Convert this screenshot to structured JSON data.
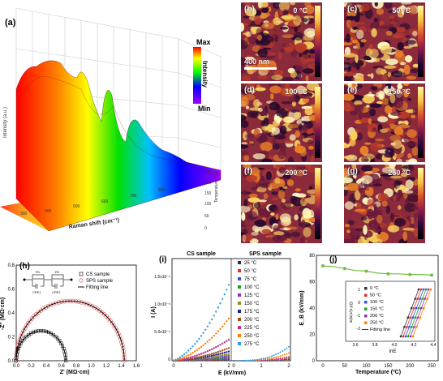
{
  "panels": {
    "a": {
      "label": "(a)",
      "colorbar_max": "Max",
      "colorbar_min": "Min",
      "colorbar_title": "Intensity",
      "xlabel": "Raman shift (cm⁻¹)",
      "ylabel": "Temperature (°C)",
      "zlabel": "Intensity (a.u.)",
      "temp_ticks": [
        "0",
        "50",
        "100",
        "150",
        "200",
        "250"
      ]
    },
    "afm": [
      {
        "label": "(b)",
        "temp": "0 °C"
      },
      {
        "label": "(c)",
        "temp": "50 °C"
      },
      {
        "label": "(d)",
        "temp": "100 °C"
      },
      {
        "label": "(e)",
        "temp": "150 °C"
      },
      {
        "label": "(f)",
        "temp": "200 °C"
      },
      {
        "label": "(g)",
        "temp": "250 °C"
      }
    ],
    "scale_bar": "400 nm",
    "h": {
      "label": "(h)",
      "xlabel": "Z' (MΩ·cm)",
      "ylabel": "-Z'' (MΩ·cm)",
      "legend": [
        "CS sample",
        "SPS sample",
        "Fitting line"
      ],
      "circuit": [
        "R1",
        "CPE1",
        "R2",
        "CPE2"
      ],
      "xticks": [
        "0.0",
        "0.2",
        "0.4",
        "0.6",
        "0.8",
        "1.0",
        "1.2",
        "1.4",
        "1.6"
      ],
      "yticks": [
        "0.0",
        "0.2",
        "0.4",
        "0.6",
        "0.8"
      ]
    },
    "i": {
      "label": "(i)",
      "xlabel": "E (kV/mm)",
      "ylabel": "I (A)",
      "left_title": "CS sample",
      "right_title": "SPS sample",
      "legend": [
        "25 °C",
        "50 °C",
        "75 °C",
        "100 °C",
        "125 °C",
        "150 °C",
        "175 °C",
        "200 °C",
        "225 °C",
        "250 °C",
        "275 °C"
      ],
      "legend_colors": [
        "#333333",
        "#e03030",
        "#3050e0",
        "#20a020",
        "#9030c0",
        "#909020",
        "#202090",
        "#a05020",
        "#c03080",
        "#ff8000",
        "#30a0e0"
      ]
    },
    "j": {
      "label": "(j)",
      "xlabel": "Temperature (ºC)",
      "ylabel": "E_B (kV/mm)",
      "xticks": [
        "0",
        "50",
        "100",
        "150",
        "200",
        "250"
      ],
      "yticks": [
        "0",
        "20",
        "40",
        "60",
        "80"
      ],
      "inset_legend": [
        "0 °C",
        "50 °C",
        "100 °C",
        "150 °C",
        "200 °C",
        "250 °C",
        "Fitting line"
      ],
      "inset_xlabel": "lnE",
      "inset_ylabel": "ln(ln(1/(1-p)))",
      "inset_xticks": [
        "3.6",
        "3.8",
        "4.0",
        "4.2",
        "4.4"
      ],
      "inset_yticks": [
        "1",
        "0",
        "-1",
        "-2"
      ]
    }
  },
  "chart_data": [
    {
      "type": "line",
      "panel": "j",
      "xlabel": "Temperature (ºC)",
      "ylabel": "E_B (kV/mm)",
      "ylim": [
        0,
        80
      ],
      "xlim": [
        0,
        250
      ],
      "x": [
        0,
        25,
        50,
        75,
        100,
        125,
        150,
        175,
        200,
        225,
        250
      ],
      "series": [
        {
          "values": [
            72,
            71.5,
            70,
            68.5,
            68,
            66.5,
            66,
            66,
            65.5,
            65.5,
            65
          ]
        }
      ]
    },
    {
      "type": "scatter",
      "panel": "h",
      "xlabel": "Z' (MΩ·cm)",
      "ylabel": "-Z'' (MΩ·cm)",
      "xlim": [
        0,
        1.6
      ],
      "ylim": [
        0,
        0.8
      ],
      "series": [
        {
          "name": "CS sample",
          "x_center": 0.33,
          "radius": 0.33,
          "peak": 0.25
        },
        {
          "name": "SPS sample",
          "x_center": 0.72,
          "radius": 0.72,
          "peak": 0.5
        }
      ]
    }
  ]
}
